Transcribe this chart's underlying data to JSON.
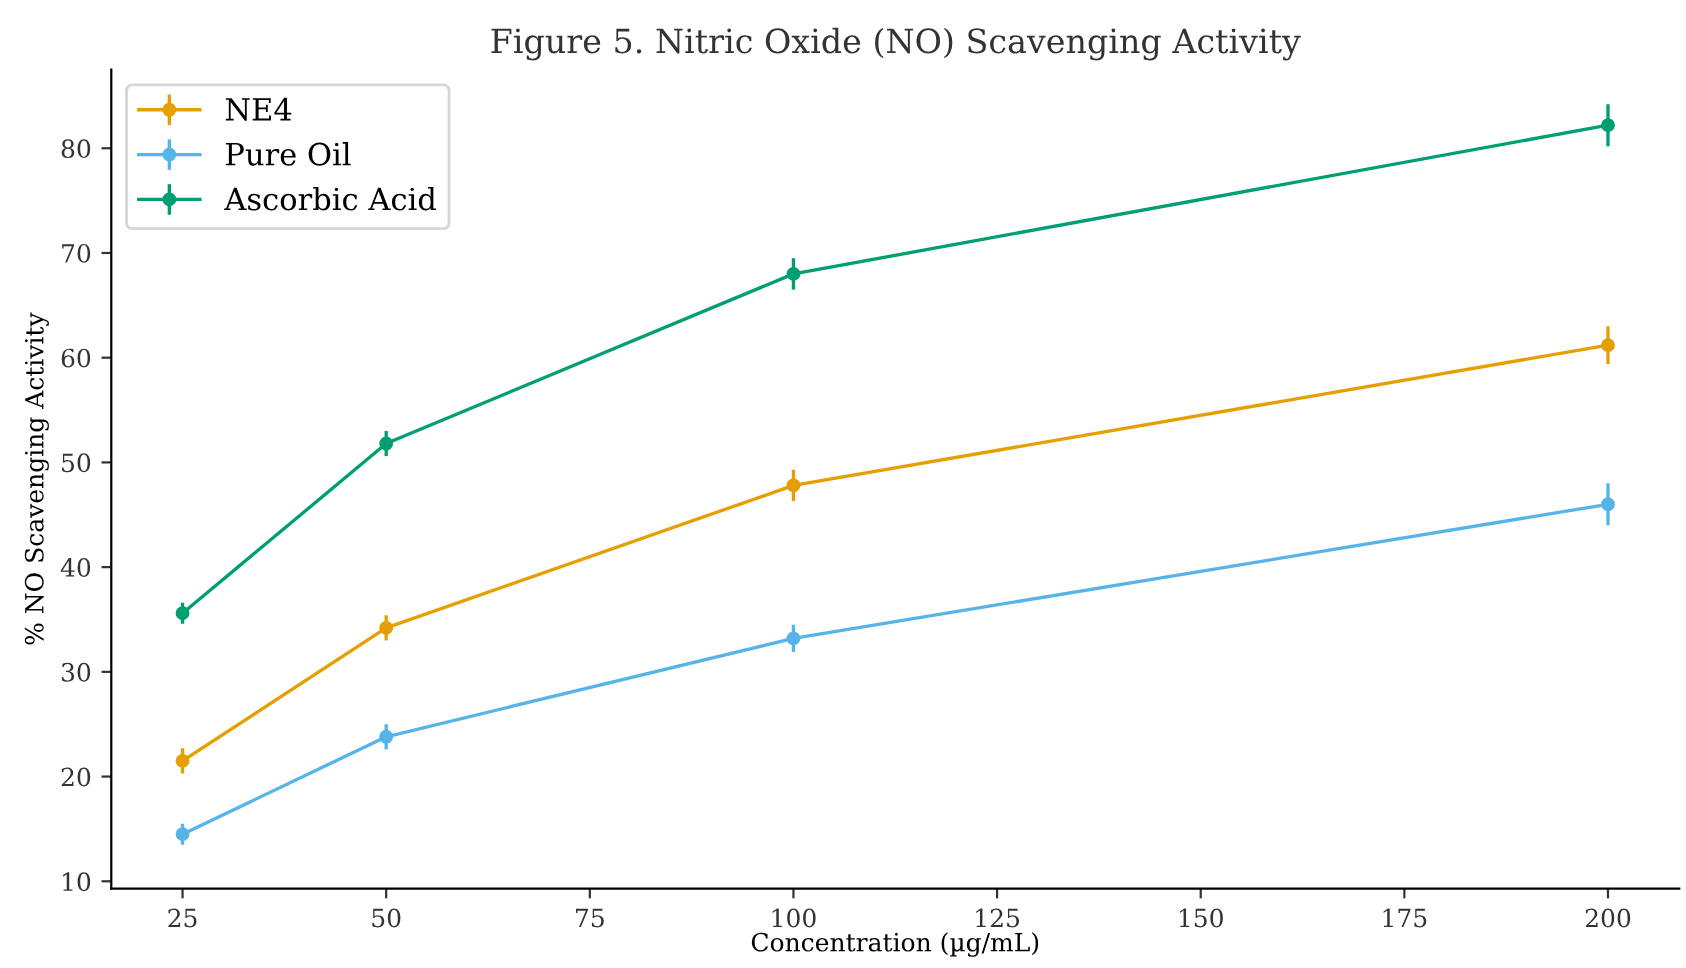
{
  "chart_data": {
    "type": "line",
    "title": "Figure 5. Nitric Oxide (NO) Scavenging Activity",
    "xlabel": "Concentration (µg/mL)",
    "ylabel": "% NO Scavenging Activity",
    "x": [
      25,
      50,
      100,
      200
    ],
    "series": [
      {
        "name": "NE4",
        "color": "#e69f00",
        "values": [
          21.5,
          34.2,
          47.8,
          61.2
        ],
        "errors": [
          1.2,
          1.2,
          1.5,
          1.8
        ]
      },
      {
        "name": "Pure Oil",
        "color": "#56b4e9",
        "values": [
          14.5,
          23.8,
          33.2,
          46.0
        ],
        "errors": [
          1.0,
          1.2,
          1.3,
          2.0
        ]
      },
      {
        "name": "Ascorbic Acid",
        "color": "#009e73",
        "values": [
          35.6,
          51.8,
          68.0,
          82.2
        ],
        "errors": [
          1.0,
          1.2,
          1.5,
          2.0
        ]
      }
    ],
    "xlim": [
      16.25,
      208.75
    ],
    "xticks": [
      25,
      50,
      75,
      100,
      125,
      150,
      175,
      200
    ],
    "ylim": [
      9.3,
      87.5
    ],
    "yticks": [
      10,
      20,
      30,
      40,
      50,
      60,
      70,
      80
    ],
    "marker": "circle",
    "line_style": "solid",
    "legend": "top left",
    "grid": false
  }
}
